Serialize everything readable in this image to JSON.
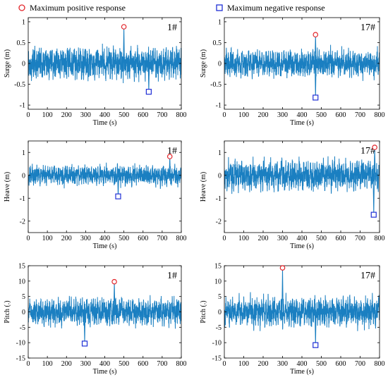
{
  "legend": {
    "positive_label": "Maximum positive response",
    "negative_label": "Maximum negative response",
    "positive_color": "#e3262b",
    "negative_color": "#1f2fd6"
  },
  "series_color": "#1a7fc1",
  "chart_data": [
    {
      "type": "line",
      "tag": "1#",
      "xlabel": "Time (s)",
      "ylabel": "Surge (m)",
      "xlim": [
        0,
        800
      ],
      "ylim": [
        -1.1,
        1.1
      ],
      "xticks": [
        0,
        100,
        200,
        300,
        400,
        500,
        600,
        700,
        800
      ],
      "yticks": [
        -1,
        -0.5,
        0,
        0.5,
        1
      ],
      "amplitude": 0.28,
      "max_positive": {
        "x": 500,
        "y": 0.88
      },
      "max_negative": {
        "x": 630,
        "y": -0.68
      },
      "grid": false
    },
    {
      "type": "line",
      "tag": "17#",
      "xlabel": "Time (s)",
      "ylabel": "Surge (m)",
      "xlim": [
        0,
        800
      ],
      "ylim": [
        -1.1,
        1.1
      ],
      "xticks": [
        0,
        100,
        200,
        300,
        400,
        500,
        600,
        700,
        800
      ],
      "yticks": [
        -1,
        -0.5,
        0,
        0.5,
        1
      ],
      "amplitude": 0.24,
      "max_positive": {
        "x": 470,
        "y": 0.69
      },
      "max_negative": {
        "x": 470,
        "y": -0.82
      },
      "grid": false
    },
    {
      "type": "line",
      "tag": "1#",
      "xlabel": "Time (s)",
      "ylabel": "Heave (m)",
      "xlim": [
        0,
        800
      ],
      "ylim": [
        -2.5,
        1.5
      ],
      "xticks": [
        0,
        100,
        200,
        300,
        400,
        500,
        600,
        700,
        800
      ],
      "yticks": [
        -2,
        -1,
        0,
        1
      ],
      "amplitude": 0.32,
      "max_positive": {
        "x": 740,
        "y": 0.82
      },
      "max_negative": {
        "x": 470,
        "y": -0.92
      },
      "grid": false
    },
    {
      "type": "line",
      "tag": "17#",
      "xlabel": "Time (s)",
      "ylabel": "Heave (m)",
      "xlim": [
        0,
        800
      ],
      "ylim": [
        -2.5,
        1.5
      ],
      "xticks": [
        0,
        100,
        200,
        300,
        400,
        500,
        600,
        700,
        800
      ],
      "yticks": [
        -2,
        -1,
        0,
        1
      ],
      "amplitude": 0.5,
      "max_positive": {
        "x": 775,
        "y": 1.22
      },
      "max_negative": {
        "x": 770,
        "y": -1.72
      },
      "grid": false
    },
    {
      "type": "line",
      "tag": "1#",
      "xlabel": "Time (s)",
      "ylabel": "Pitch (.)",
      "xlim": [
        0,
        800
      ],
      "ylim": [
        -15,
        15
      ],
      "xticks": [
        0,
        100,
        200,
        300,
        400,
        500,
        600,
        700,
        800
      ],
      "yticks": [
        -15,
        -10,
        -5,
        0,
        5,
        10,
        15
      ],
      "amplitude": 3.2,
      "max_positive": {
        "x": 450,
        "y": 9.8
      },
      "max_negative": {
        "x": 295,
        "y": -10.3
      },
      "grid": false
    },
    {
      "type": "line",
      "tag": "17#",
      "xlabel": "Time (s)",
      "ylabel": "Pitch (.)",
      "xlim": [
        0,
        800
      ],
      "ylim": [
        -15,
        15
      ],
      "xticks": [
        0,
        100,
        200,
        300,
        400,
        500,
        600,
        700,
        800
      ],
      "yticks": [
        -15,
        -10,
        -5,
        0,
        5,
        10,
        15
      ],
      "amplitude": 3.5,
      "max_positive": {
        "x": 300,
        "y": 14.3
      },
      "max_negative": {
        "x": 470,
        "y": -10.8
      },
      "grid": false
    }
  ]
}
